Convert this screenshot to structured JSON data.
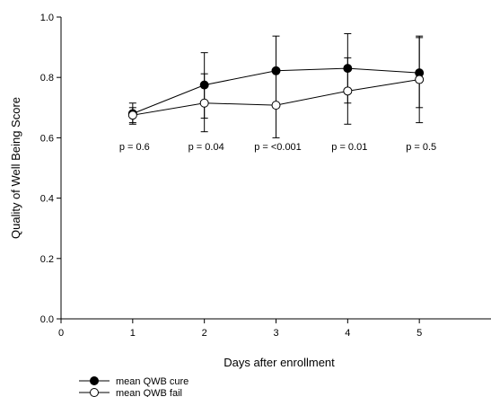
{
  "chart_data": {
    "type": "line",
    "title": "",
    "xlabel": "Days after enrollment",
    "ylabel": "Quality of Well Being Score",
    "xlim": [
      0,
      6
    ],
    "ylim": [
      0,
      1.0
    ],
    "x_ticks": [
      "0",
      "1",
      "2",
      "3",
      "4",
      "5"
    ],
    "y_ticks": [
      "0.0",
      "0.2",
      "0.4",
      "0.6",
      "0.8",
      "1.0"
    ],
    "grid": false,
    "legend_position": "bottom-left",
    "x": [
      1,
      2,
      3,
      4,
      5
    ],
    "series": [
      {
        "name": "mean QWB cure",
        "marker": "filled-circle",
        "color": "#000000",
        "values": [
          0.68,
          0.775,
          0.822,
          0.83,
          0.815
        ],
        "error_low": [
          0.645,
          0.665,
          0.7,
          0.715,
          0.7
        ],
        "error_high": [
          0.715,
          0.882,
          0.937,
          0.945,
          0.937
        ]
      },
      {
        "name": "mean QWB fail",
        "marker": "open-circle",
        "color": "#000000",
        "values": [
          0.675,
          0.715,
          0.708,
          0.755,
          0.793
        ],
        "error_low": [
          0.65,
          0.62,
          0.6,
          0.645,
          0.65
        ],
        "error_high": [
          0.7,
          0.812,
          0.82,
          0.865,
          0.932
        ]
      }
    ],
    "annotations": [
      {
        "x": 1,
        "y": 0.56,
        "text": "p = 0.6"
      },
      {
        "x": 2,
        "y": 0.56,
        "text": "p = 0.04"
      },
      {
        "x": 3,
        "y": 0.56,
        "text": "p = <0.001"
      },
      {
        "x": 4,
        "y": 0.56,
        "text": "p = 0.01"
      },
      {
        "x": 5,
        "y": 0.56,
        "text": "p = 0.5"
      }
    ]
  }
}
